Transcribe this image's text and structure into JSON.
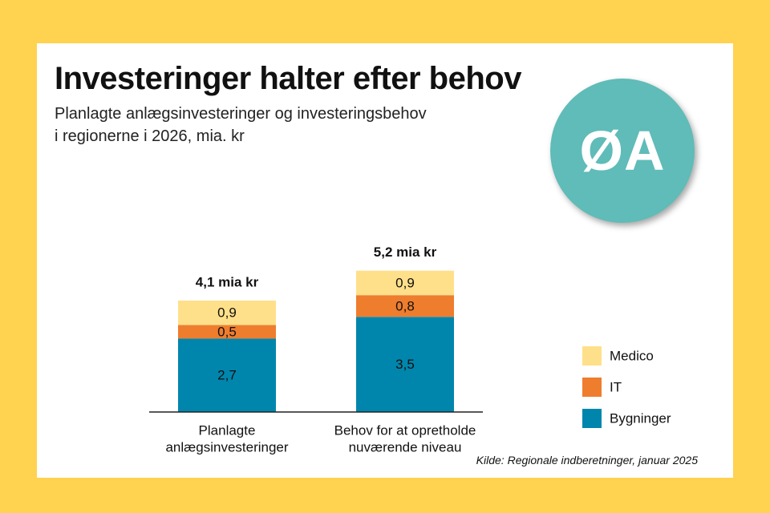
{
  "header": {
    "title": "Investeringer halter efter behov",
    "subtitle_line1": "Planlagte anlægsinvesteringer og investeringsbehov",
    "subtitle_line2": "i regionerne i 2026, mia. kr"
  },
  "badge": {
    "text": "ØA",
    "color": "#5fbcb8"
  },
  "footer": {
    "source": "Kilde: Regionale indberetninger, januar 2025"
  },
  "chart_data": {
    "type": "bar",
    "stacked": true,
    "title": "Investeringer halter efter behov",
    "subtitle": "Planlagte anlægsinvesteringer og investeringsbehov i regionerne i 2026, mia. kr",
    "categories": [
      [
        "Planlagte",
        "anlægsinvesteringer"
      ],
      [
        "Behov for at opretholde",
        "nuværende niveau"
      ]
    ],
    "series": [
      {
        "name": "Bygninger",
        "color": "#0086ad",
        "values": [
          2.7,
          3.5
        ],
        "labels": [
          "2,7",
          "3,5"
        ]
      },
      {
        "name": "IT",
        "color": "#ee7d2e",
        "values": [
          0.5,
          0.8
        ],
        "labels": [
          "0,5",
          "0,8"
        ]
      },
      {
        "name": "Medico",
        "color": "#ffe08a",
        "values": [
          0.9,
          0.9
        ],
        "labels": [
          "0,9",
          "0,9"
        ]
      }
    ],
    "totals": [
      "4,1 mia kr",
      "5,2 mia kr"
    ],
    "legend": [
      {
        "name": "Medico",
        "color": "#ffe08a"
      },
      {
        "name": "IT",
        "color": "#ee7d2e"
      },
      {
        "name": "Bygninger",
        "color": "#0086ad"
      }
    ],
    "legend_position": "right",
    "ylim": [
      0,
      5.2
    ],
    "grid": false,
    "xlabel": "",
    "ylabel": ""
  }
}
